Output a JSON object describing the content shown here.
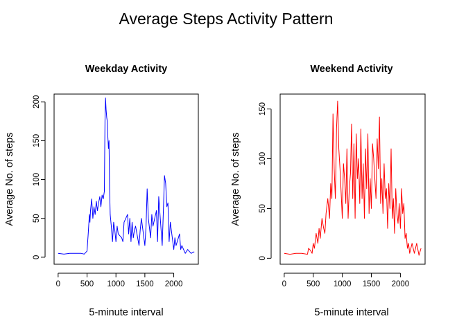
{
  "title": "Average Steps Activity Pattern",
  "chart_data": [
    {
      "type": "line",
      "title": "Weekday Activity",
      "xlabel": "5-minute interval",
      "ylabel": "Average No. of steps",
      "xlim": [
        -70,
        2425
      ],
      "ylim": [
        -9,
        210
      ],
      "xticks": [
        0,
        500,
        1000,
        1500,
        2000
      ],
      "yticks": [
        0,
        50,
        100,
        150,
        200
      ],
      "color": "#0000ff",
      "series": [
        {
          "x": [
            0,
            100,
            200,
            300,
            400,
            450,
            500,
            520,
            540,
            550,
            560,
            580,
            600,
            620,
            640,
            660,
            680,
            700,
            720,
            740,
            760,
            780,
            800,
            810,
            820,
            830,
            840,
            850,
            860,
            870,
            880,
            890,
            900,
            920,
            940,
            960,
            980,
            1000,
            1020,
            1040,
            1100,
            1120,
            1140,
            1200,
            1220,
            1240,
            1260,
            1280,
            1300,
            1320,
            1340,
            1400,
            1420,
            1440,
            1500,
            1520,
            1540,
            1560,
            1600,
            1620,
            1640,
            1700,
            1720,
            1740,
            1800,
            1820,
            1840,
            1860,
            1880,
            1900,
            1920,
            1940,
            2000,
            2020,
            2040,
            2100,
            2120,
            2140,
            2200,
            2240,
            2300,
            2355
          ],
          "y": [
            5,
            4,
            5,
            5,
            5,
            4,
            8,
            30,
            55,
            45,
            60,
            75,
            50,
            65,
            55,
            72,
            60,
            70,
            78,
            65,
            80,
            75,
            85,
            175,
            205,
            190,
            180,
            175,
            155,
            140,
            150,
            90,
            55,
            40,
            20,
            45,
            35,
            20,
            40,
            30,
            25,
            20,
            45,
            55,
            30,
            50,
            20,
            45,
            25,
            35,
            40,
            15,
            35,
            50,
            15,
            40,
            88,
            50,
            25,
            55,
            40,
            60,
            20,
            78,
            15,
            60,
            105,
            95,
            65,
            70,
            20,
            45,
            10,
            25,
            15,
            30,
            10,
            15,
            5,
            10,
            5,
            7
          ]
        }
      ]
    },
    {
      "type": "line",
      "title": "Weekend Activity",
      "xlabel": "5-minute interval",
      "ylabel": "Average No. of steps",
      "xlim": [
        -70,
        2425
      ],
      "ylim": [
        -6,
        165
      ],
      "xticks": [
        0,
        500,
        1000,
        1500,
        2000
      ],
      "yticks": [
        0,
        50,
        100,
        150
      ],
      "color": "#ff0000",
      "series": [
        {
          "x": [
            0,
            100,
            200,
            300,
            400,
            420,
            450,
            480,
            500,
            520,
            550,
            580,
            600,
            620,
            650,
            680,
            700,
            720,
            750,
            780,
            800,
            820,
            840,
            860,
            880,
            900,
            920,
            940,
            960,
            980,
            1000,
            1020,
            1040,
            1060,
            1080,
            1100,
            1120,
            1140,
            1160,
            1180,
            1200,
            1220,
            1240,
            1260,
            1280,
            1300,
            1320,
            1340,
            1360,
            1380,
            1400,
            1420,
            1440,
            1460,
            1480,
            1500,
            1520,
            1540,
            1560,
            1580,
            1600,
            1620,
            1640,
            1660,
            1680,
            1700,
            1720,
            1740,
            1760,
            1780,
            1800,
            1820,
            1840,
            1860,
            1880,
            1900,
            1920,
            1940,
            1960,
            1980,
            2000,
            2020,
            2040,
            2060,
            2080,
            2100,
            2120,
            2140,
            2160,
            2200,
            2240,
            2280,
            2320,
            2355
          ],
          "y": [
            5,
            4,
            5,
            5,
            4,
            10,
            8,
            5,
            15,
            10,
            25,
            15,
            30,
            20,
            40,
            30,
            25,
            45,
            60,
            40,
            75,
            60,
            145,
            90,
            60,
            130,
            158,
            110,
            90,
            65,
            40,
            95,
            80,
            55,
            110,
            40,
            70,
            85,
            135,
            60,
            115,
            40,
            125,
            80,
            100,
            55,
            130,
            60,
            95,
            40,
            110,
            70,
            125,
            45,
            80,
            50,
            115,
            100,
            80,
            60,
            120,
            90,
            142,
            55,
            80,
            45,
            95,
            60,
            70,
            30,
            75,
            50,
            110,
            40,
            60,
            25,
            70,
            45,
            35,
            55,
            30,
            70,
            45,
            55,
            20,
            25,
            10,
            15,
            5,
            15,
            5,
            15,
            3,
            10
          ]
        }
      ]
    }
  ]
}
